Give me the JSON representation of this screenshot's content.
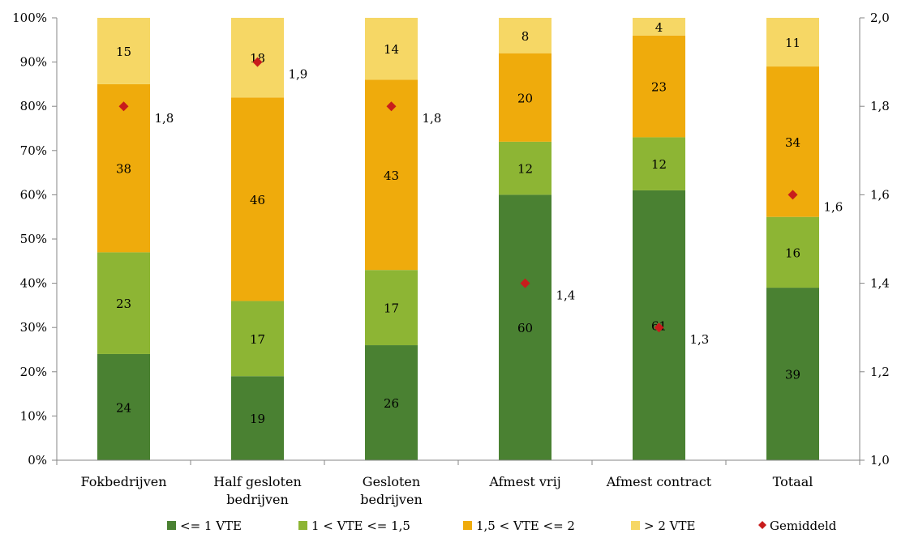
{
  "chart_data": {
    "type": "bar",
    "stacked": "percent",
    "categories": [
      [
        "Fokbedrijven"
      ],
      [
        "Half gesloten",
        "bedrijven"
      ],
      [
        "Gesloten",
        "bedrijven"
      ],
      [
        "Afmest vrij"
      ],
      [
        "Afmest contract"
      ],
      [
        "Totaal"
      ]
    ],
    "series": [
      {
        "name": "<= 1 VTE",
        "color": "#4a8132",
        "values": [
          24,
          19,
          26,
          60,
          61,
          39
        ]
      },
      {
        "name": "1 < VTE <= 1,5",
        "color": "#8db534",
        "values": [
          23,
          17,
          17,
          12,
          12,
          16
        ]
      },
      {
        "name": "1,5 < VTE <= 2",
        "color": "#efab0c",
        "values": [
          38,
          46,
          43,
          20,
          23,
          34
        ]
      },
      {
        "name": "> 2 VTE",
        "color": "#f6d765",
        "values": [
          15,
          18,
          14,
          8,
          4,
          11
        ]
      }
    ],
    "mean_series": {
      "name": "Gemiddeld",
      "color": "#c81c1c",
      "axis": "right",
      "values": [
        1.8,
        1.9,
        1.8,
        1.4,
        1.3,
        1.6
      ],
      "labels": [
        "1,8",
        "1,9",
        "1,8",
        "1,4",
        "1,3",
        "1,6"
      ]
    },
    "left_axis": {
      "ylim": [
        0,
        100
      ],
      "ticks": [
        "0%",
        "10%",
        "20%",
        "30%",
        "40%",
        "50%",
        "60%",
        "70%",
        "80%",
        "90%",
        "100%"
      ]
    },
    "right_axis": {
      "ylim": [
        1.0,
        2.0
      ],
      "ticks": [
        "1,0",
        "1,2",
        "1,4",
        "1,6",
        "1,8",
        "2,0"
      ]
    },
    "grid": false,
    "legend_position": "bottom"
  }
}
